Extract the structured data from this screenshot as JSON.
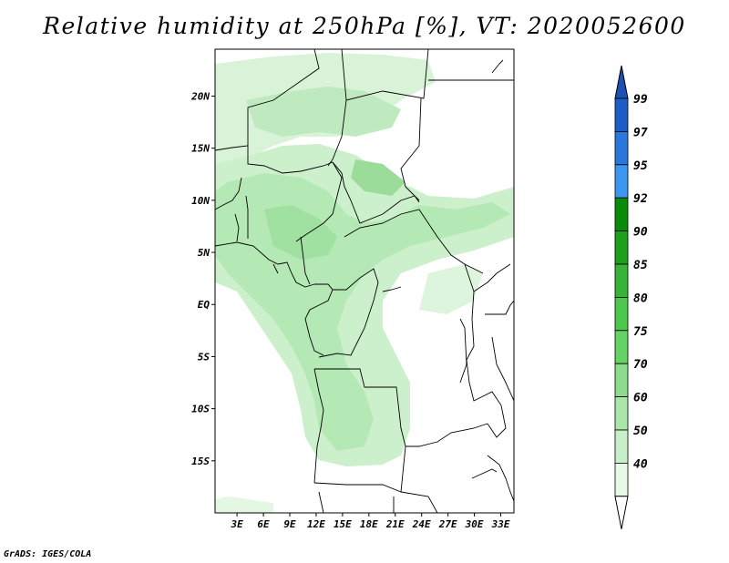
{
  "title": "Relative humidity at 250hPa [%], VT: 2020052600",
  "credit": "GrADS: IGES/COLA",
  "map": {
    "region": "Central Africa",
    "lat_labels": [
      "20N",
      "15N",
      "10N",
      "5N",
      "EQ",
      "5S",
      "10S",
      "15S"
    ],
    "lat_values": [
      20,
      15,
      10,
      5,
      0,
      -5,
      -10,
      -15
    ],
    "lon_labels": [
      "3E",
      "6E",
      "9E",
      "12E",
      "15E",
      "18E",
      "21E",
      "24E",
      "27E",
      "30E",
      "33E"
    ],
    "lon_values": [
      3,
      6,
      9,
      12,
      15,
      18,
      21,
      24,
      27,
      30,
      33
    ],
    "lat_range": [
      -20,
      24.5
    ],
    "lon_range": [
      0.5,
      34.5
    ]
  },
  "colorbar": {
    "levels": [
      "99",
      "97",
      "95",
      "92",
      "90",
      "85",
      "80",
      "75",
      "70",
      "60",
      "50",
      "40"
    ],
    "colors": [
      "#1e5cc8",
      "#2a78dc",
      "#3c96f0",
      "#0a8c0a",
      "#1ea01e",
      "#37b437",
      "#4bc84b",
      "#64d264",
      "#8cdc8c",
      "#aae6aa",
      "#c8f0c8",
      "#e6fae6"
    ],
    "top_arrow_color": "#1e50b4",
    "bottom_arrow_color": "#ffffff"
  }
}
